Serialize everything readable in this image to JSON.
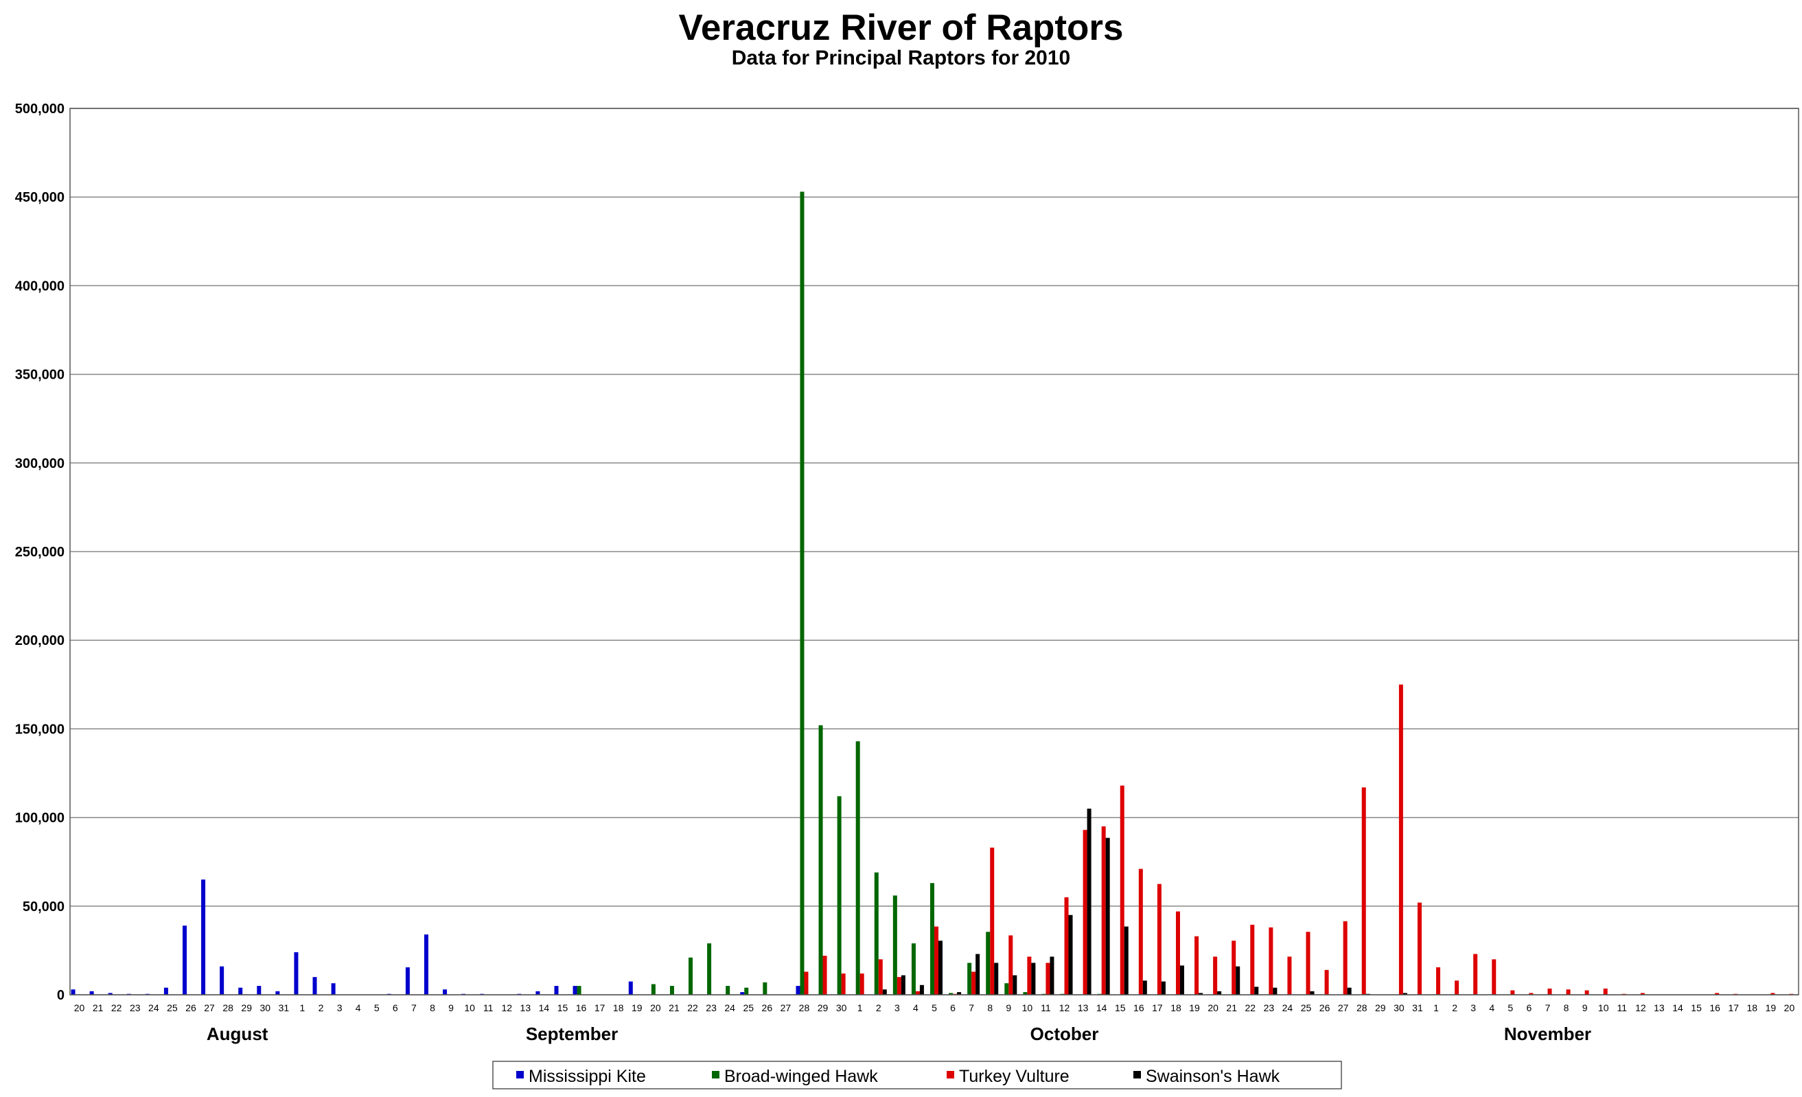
{
  "chart_data": {
    "type": "bar",
    "title": "Veracruz River of Raptors",
    "subtitle": "Data for Principal Raptors for 2010",
    "xlabel": "",
    "ylabel": "",
    "ylim": [
      0,
      500000
    ],
    "yticks": [
      0,
      50000,
      100000,
      150000,
      200000,
      250000,
      300000,
      350000,
      400000,
      450000,
      500000
    ],
    "ytick_labels": [
      "0",
      "50,000",
      "100,000",
      "150,000",
      "200,000",
      "250,000",
      "300,000",
      "350,000",
      "400,000",
      "450,000",
      "500,000"
    ],
    "grid": true,
    "legend_position": "bottom",
    "month_labels": [
      {
        "label": "August",
        "center_index": 8.5
      },
      {
        "label": "September",
        "center_index": 26.5
      },
      {
        "label": "October",
        "center_index": 53
      },
      {
        "label": "November",
        "center_index": 79
      }
    ],
    "categories": [
      "20",
      "21",
      "22",
      "23",
      "24",
      "25",
      "26",
      "27",
      "28",
      "29",
      "30",
      "31",
      "1",
      "2",
      "3",
      "4",
      "5",
      "6",
      "7",
      "8",
      "9",
      "10",
      "11",
      "12",
      "13",
      "14",
      "15",
      "16",
      "17",
      "18",
      "19",
      "20",
      "21",
      "22",
      "23",
      "24",
      "25",
      "26",
      "27",
      "28",
      "29",
      "30",
      "1",
      "2",
      "3",
      "4",
      "5",
      "6",
      "7",
      "8",
      "9",
      "10",
      "11",
      "12",
      "13",
      "14",
      "15",
      "16",
      "17",
      "18",
      "19",
      "20",
      "21",
      "22",
      "23",
      "24",
      "25",
      "26",
      "27",
      "28",
      "29",
      "30",
      "31",
      "1",
      "2",
      "3",
      "4",
      "5",
      "6",
      "7",
      "8",
      "9",
      "10",
      "11",
      "12",
      "13",
      "14",
      "15",
      "16",
      "17",
      "18",
      "19",
      "20"
    ],
    "series": [
      {
        "name": "Mississippi Kite",
        "color": "#0000cc",
        "values": [
          3000,
          2000,
          1000,
          500,
          500,
          4000,
          39000,
          65000,
          16000,
          4000,
          5000,
          2000,
          24000,
          10000,
          6500,
          0,
          0,
          500,
          15500,
          34000,
          3000,
          500,
          500,
          0,
          500,
          2000,
          5000,
          5000,
          0,
          0,
          7500,
          0,
          0,
          0,
          0,
          0,
          1500,
          0,
          0,
          5000,
          0,
          0,
          0,
          0,
          0,
          0,
          0,
          0,
          0,
          0,
          0,
          0,
          0,
          0,
          0,
          0,
          0,
          0,
          0,
          0,
          0,
          0,
          0,
          0,
          0,
          0,
          0,
          0,
          0,
          0,
          0,
          0,
          0,
          0,
          0,
          0,
          0,
          0,
          0,
          0,
          0,
          0,
          0,
          0,
          0,
          0,
          0,
          0,
          0,
          0,
          0,
          0,
          0
        ]
      },
      {
        "name": "Broad-winged Hawk",
        "color": "#006600",
        "values": [
          0,
          0,
          0,
          0,
          0,
          0,
          0,
          0,
          0,
          0,
          0,
          0,
          0,
          0,
          0,
          0,
          0,
          0,
          0,
          0,
          0,
          0,
          0,
          0,
          0,
          0,
          0,
          5000,
          0,
          0,
          0,
          6000,
          5000,
          21000,
          29000,
          5000,
          4000,
          7000,
          0,
          453000,
          152000,
          112000,
          143000,
          69000,
          56000,
          29000,
          63000,
          1000,
          18000,
          35500,
          6500,
          1500,
          500,
          500,
          0,
          500,
          0,
          0,
          0,
          0,
          0,
          0,
          0,
          0,
          0,
          0,
          0,
          0,
          0,
          0,
          0,
          0,
          0,
          0,
          0,
          0,
          0,
          0,
          0,
          0,
          0,
          0,
          0,
          0,
          0,
          0,
          0,
          0,
          0,
          0,
          0,
          0,
          0
        ]
      },
      {
        "name": "Turkey Vulture",
        "color": "#dd0000",
        "values": [
          0,
          0,
          0,
          0,
          0,
          0,
          0,
          0,
          0,
          0,
          0,
          0,
          0,
          0,
          0,
          0,
          0,
          0,
          0,
          0,
          0,
          0,
          0,
          0,
          0,
          0,
          0,
          0,
          0,
          0,
          0,
          0,
          0,
          0,
          0,
          0,
          0,
          0,
          0,
          13000,
          22000,
          12000,
          12000,
          20000,
          10000,
          2000,
          38500,
          500,
          13000,
          83000,
          33500,
          21500,
          18000,
          55000,
          93000,
          95000,
          118000,
          71000,
          62500,
          47000,
          33000,
          21500,
          30500,
          39500,
          38000,
          21500,
          35500,
          14000,
          41500,
          117000,
          0,
          175000,
          52000,
          15500,
          8000,
          23000,
          20000,
          2500,
          1000,
          3500,
          3000,
          2500,
          3500,
          500,
          1000,
          0,
          0,
          0,
          1000,
          500,
          0,
          1000,
          500
        ]
      },
      {
        "name": "Swainson's Hawk",
        "color": "#000000",
        "values": [
          0,
          0,
          0,
          0,
          0,
          0,
          0,
          0,
          0,
          0,
          0,
          0,
          0,
          0,
          0,
          0,
          0,
          0,
          0,
          0,
          0,
          0,
          0,
          0,
          0,
          0,
          0,
          0,
          0,
          0,
          0,
          0,
          0,
          0,
          0,
          0,
          0,
          0,
          0,
          0,
          0,
          0,
          0,
          3000,
          11000,
          5500,
          30500,
          1500,
          23000,
          18000,
          11000,
          18000,
          21500,
          45000,
          105000,
          88500,
          38500,
          8000,
          7500,
          16500,
          1000,
          2000,
          16000,
          4500,
          4000,
          0,
          2000,
          0,
          4000,
          500,
          0,
          1000,
          0,
          0,
          0,
          0,
          0,
          0,
          0,
          0,
          0,
          0,
          0,
          0,
          0,
          0,
          0,
          0,
          0,
          0,
          0,
          0,
          0
        ]
      }
    ]
  }
}
